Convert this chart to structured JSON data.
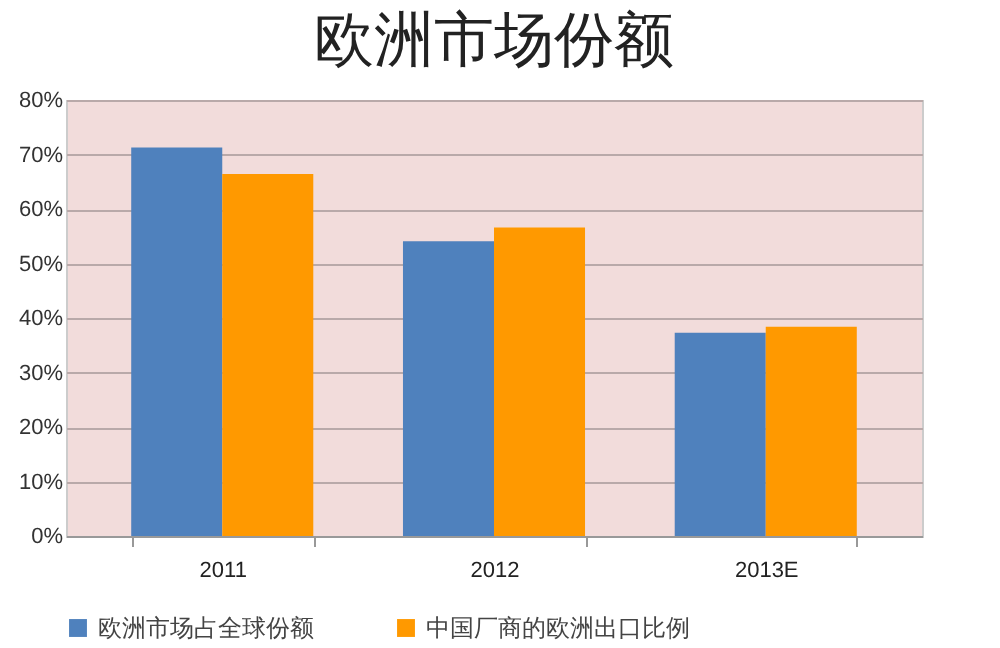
{
  "chart_data": {
    "type": "bar",
    "title": "欧洲市场份额",
    "categories": [
      "2011",
      "2012",
      "2013E"
    ],
    "series": [
      {
        "name": "欧洲市场占全球份额",
        "color": "#4f81bd",
        "values": [
          71.3,
          54.1,
          37.3
        ]
      },
      {
        "name": "中国厂商的欧洲出口比例",
        "color": "#ff9900",
        "values": [
          66.4,
          56.6,
          38.4
        ]
      }
    ],
    "ylim": [
      0,
      80
    ],
    "yticks": [
      {
        "value": 0,
        "label": "0%"
      },
      {
        "value": 10,
        "label": "10%"
      },
      {
        "value": 20,
        "label": "20%"
      },
      {
        "value": 30,
        "label": "30%"
      },
      {
        "value": 40,
        "label": "40%"
      },
      {
        "value": 50,
        "label": "50%"
      },
      {
        "value": 60,
        "label": "60%"
      },
      {
        "value": 70,
        "label": "70%"
      },
      {
        "value": 80,
        "label": "80%"
      }
    ],
    "grid": "y",
    "legend": "bottom"
  }
}
